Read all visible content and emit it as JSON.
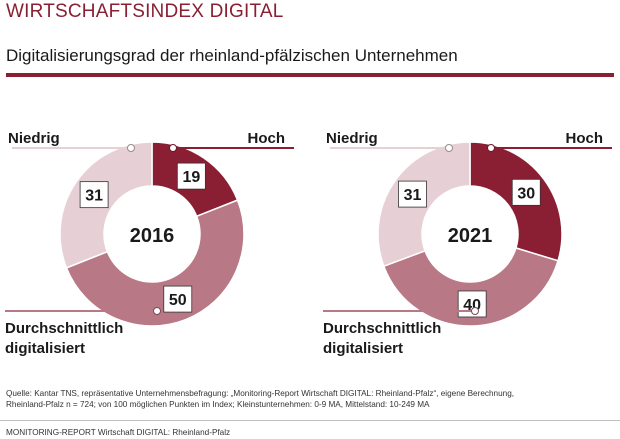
{
  "header": {
    "brand": "WIRTSCHAFTSINDEX DIGITAL",
    "subtitle": "Digitalisierungsgrad der rheinland-pfälzischen Unternehmen"
  },
  "colors": {
    "accent": "#8a1f34",
    "hoch": "#8a1f34",
    "durchschnittlich": "#b87886",
    "niedrig": "#e6d0d5"
  },
  "chart_data": {
    "type": "pie",
    "category_labels": {
      "niedrig": "Niedrig",
      "hoch": "Hoch",
      "durchschnittlich_line1": "Durchschnittlich",
      "durchschnittlich_line2": "digitalisiert"
    },
    "charts": [
      {
        "year": "2016",
        "slices": [
          {
            "key": "hoch",
            "value": 19
          },
          {
            "key": "durchschnittlich",
            "value": 50
          },
          {
            "key": "niedrig",
            "value": 31
          }
        ]
      },
      {
        "year": "2021",
        "slices": [
          {
            "key": "hoch",
            "value": 30
          },
          {
            "key": "durchschnittlich",
            "value": 40
          },
          {
            "key": "niedrig",
            "value": 31
          }
        ]
      }
    ]
  },
  "source": {
    "line1": "Quelle: Kantar TNS, repräsentative Unternehmensbefragung: „Monitoring-Report Wirtschaft DIGITAL: Rheinland-Pfalz“, eigene Berechnung,",
    "line2": "Rheinland-Pfalz n = 724; von 100 möglichen Punkten im Index; Kleinstunternehmen: 0-9 MA, Mittelstand: 10-249 MA"
  },
  "footer": {
    "text": "MONITORING-REPORT Wirtschaft DIGITAL: Rheinland-Pfalz"
  }
}
